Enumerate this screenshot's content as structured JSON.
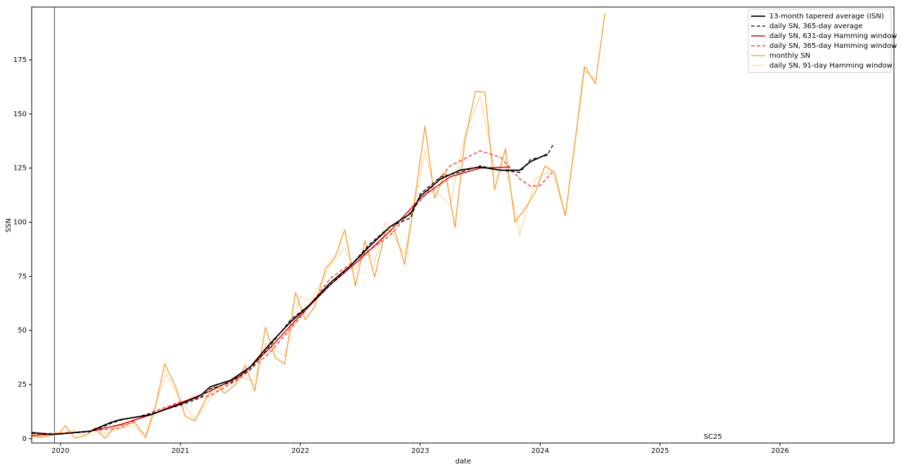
{
  "chart_data": {
    "type": "line",
    "xlabel": "date",
    "ylabel": "SSN",
    "xlim": [
      2019.76,
      2026.95
    ],
    "xticks": [
      2020,
      2021,
      2022,
      2023,
      2024,
      2025,
      2026
    ],
    "ylim": [
      -2,
      199.4
    ],
    "yticks": [
      0,
      25,
      50,
      75,
      100,
      125,
      150,
      175
    ],
    "legend": "upper right",
    "vlines": [
      2019.95
    ],
    "annotations": [
      {
        "text": "SC25",
        "x": 2025.44,
        "y": 0
      }
    ],
    "series": [
      {
        "name": "13-month tapered average (ISN)",
        "color": "#000000",
        "dash": false,
        "width": 1.8,
        "x": [
          2019.76,
          2019.92,
          2020.0,
          2020.25,
          2020.42,
          2020.5,
          2020.75,
          2021.0,
          2021.17,
          2021.25,
          2021.42,
          2021.58,
          2021.75,
          2021.92,
          2022.08,
          2022.25,
          2022.42,
          2022.58,
          2022.75,
          2022.92,
          2023.0,
          2023.17,
          2023.33,
          2023.5,
          2023.67,
          2023.83,
          2023.92,
          2024.0,
          2024.06
        ],
        "values": [
          2.8,
          2,
          2.2,
          3.5,
          7.5,
          8.8,
          11,
          16,
          20,
          24,
          27,
          33,
          44,
          54,
          62,
          72,
          80,
          89,
          98,
          104,
          112,
          120,
          124,
          125.5,
          124,
          124,
          128,
          130,
          131.5
        ]
      },
      {
        "name": "daily SN, 365-day average",
        "color": "#000000",
        "dash": true,
        "width": 1.3,
        "x": [
          2019.76,
          2019.92,
          2020.0,
          2020.25,
          2020.42,
          2020.5,
          2020.75,
          2021.0,
          2021.17,
          2021.25,
          2021.42,
          2021.58,
          2021.75,
          2021.92,
          2022.08,
          2022.25,
          2022.42,
          2022.58,
          2022.75,
          2022.92,
          2023.0,
          2023.17,
          2023.33,
          2023.5,
          2023.67,
          2023.83,
          2023.92,
          2024.0,
          2024.06,
          2024.11
        ],
        "values": [
          2.5,
          2,
          2.3,
          3.2,
          7,
          8.5,
          11.5,
          15.5,
          19,
          23,
          26,
          32,
          43,
          55,
          62,
          71,
          80,
          90,
          98,
          102,
          113,
          121,
          123,
          126,
          124,
          123,
          129,
          130,
          131,
          136
        ]
      },
      {
        "name": "daily SN, 631-day Hamming window",
        "color": "#e00000",
        "dash": false,
        "width": 1.5,
        "x": [
          2019.76,
          2020.0,
          2020.25,
          2020.5,
          2020.75,
          2021.0,
          2021.25,
          2021.5,
          2021.75,
          2022.0,
          2022.25,
          2022.5,
          2022.75,
          2023.0,
          2023.25,
          2023.5,
          2023.75
        ],
        "values": [
          1.5,
          2.3,
          3.5,
          6.5,
          11,
          16.5,
          22,
          29,
          42,
          57,
          71,
          83,
          96,
          111,
          121,
          125,
          125.5
        ]
      },
      {
        "name": "daily SN, 365-day Hamming window",
        "color": "#ff3b3b",
        "dash": true,
        "width": 1.5,
        "x": [
          2019.76,
          2020.0,
          2020.25,
          2020.5,
          2020.75,
          2021.0,
          2021.25,
          2021.5,
          2021.75,
          2022.0,
          2022.25,
          2022.5,
          2022.75,
          2023.0,
          2023.25,
          2023.5,
          2023.67,
          2023.83,
          2023.92,
          2024.0,
          2024.1
        ],
        "values": [
          2.5,
          2.5,
          3.5,
          5,
          12,
          17,
          20,
          28,
          40,
          56,
          74,
          84,
          94,
          110,
          126,
          133,
          130,
          120,
          116.5,
          117,
          123
        ]
      },
      {
        "name": "monthly SN",
        "color": "#f8a444",
        "dash": false,
        "width": 1.5,
        "x": [
          2019.76,
          2019.83,
          2019.92,
          2020.0,
          2020.04,
          2020.12,
          2020.21,
          2020.29,
          2020.37,
          2020.46,
          2020.54,
          2020.62,
          2020.71,
          2020.79,
          2020.87,
          2020.96,
          2021.04,
          2021.12,
          2021.21,
          2021.29,
          2021.37,
          2021.46,
          2021.54,
          2021.62,
          2021.71,
          2021.79,
          2021.87,
          2021.96,
          2022.04,
          2022.12,
          2022.21,
          2022.29,
          2022.37,
          2022.46,
          2022.54,
          2022.62,
          2022.71,
          2022.79,
          2022.87,
          2022.96,
          2023.04,
          2023.12,
          2023.21,
          2023.29,
          2023.37,
          2023.46,
          2023.54,
          2023.62,
          2023.71,
          2023.79,
          2023.87,
          2023.96,
          2024.04,
          2024.12,
          2024.21,
          2024.29,
          2024.37,
          2024.46,
          2024.54
        ],
        "values": [
          1,
          0.5,
          1.5,
          3,
          6,
          0.3,
          1.5,
          5,
          0.2,
          5.8,
          6.5,
          7.5,
          0.5,
          14.5,
          34.5,
          24,
          10.4,
          8.2,
          18,
          25,
          21,
          25,
          34,
          22,
          51.5,
          37.5,
          34.5,
          67.5,
          55,
          61,
          78.5,
          84,
          96.5,
          70.5,
          91.4,
          74.6,
          96.5,
          95.5,
          80.5,
          113,
          144.4,
          111,
          123,
          97.6,
          137,
          160.5,
          160,
          115,
          134,
          100,
          106,
          114,
          126,
          123,
          103,
          137,
          172,
          164,
          196.5
        ]
      },
      {
        "name": "daily SN, 91-day Hamming window",
        "color": "#ffd8a6",
        "dash": false,
        "width": 1.3,
        "x": [
          2019.76,
          2020.0,
          2020.1,
          2020.2,
          2020.4,
          2020.6,
          2020.71,
          2020.88,
          2021.0,
          2021.12,
          2021.3,
          2021.5,
          2021.62,
          2021.71,
          2021.87,
          2022.0,
          2022.08,
          2022.25,
          2022.37,
          2022.46,
          2022.55,
          2022.62,
          2022.71,
          2022.87,
          2023.04,
          2023.12,
          2023.25,
          2023.37,
          2023.5,
          2023.62,
          2023.71,
          2023.83,
          2023.96,
          2024.1,
          2024.21,
          2024.3,
          2024.37,
          2024.46
        ],
        "values": [
          1,
          2,
          4,
          1.5,
          3,
          6,
          2,
          30,
          18,
          9,
          22,
          28,
          27,
          44,
          38,
          66,
          63,
          80,
          88,
          78,
          87,
          82,
          100,
          85,
          133,
          115,
          108,
          140,
          158,
          125,
          127,
          94,
          120,
          124,
          103,
          140,
          170,
          166
        ]
      }
    ]
  }
}
